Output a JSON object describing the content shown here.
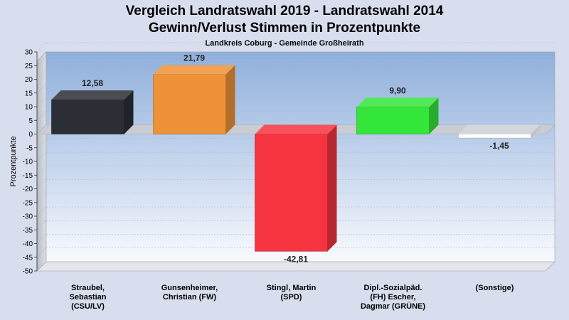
{
  "header": {
    "title_line1": "Vergleich Landratswahl 2019 - Landratswahl 2014",
    "title_line2": "Gewinn/Verlust Stimmen in Prozentpunkte",
    "subtitle": "Landkreis Coburg - Gemeinde Großheirath"
  },
  "chart_data": {
    "type": "bar",
    "title": "Vergleich Landratswahl 2019 - Landratswahl 2014 / Gewinn/Verlust Stimmen in Prozentpunkte",
    "subtitle": "Landkreis Coburg - Gemeinde Großheirath",
    "ylabel": "Prozentpunkte",
    "xlabel": "",
    "ylim": [
      -50,
      30
    ],
    "yticks": [
      30,
      25,
      20,
      15,
      10,
      5,
      0,
      -5,
      -10,
      -15,
      -20,
      -25,
      -30,
      -35,
      -40,
      -45,
      -50
    ],
    "grid": true,
    "legend": "none",
    "categories": [
      [
        "Straubel,",
        "Sebastian",
        "(CSU/LV)"
      ],
      [
        "Gunsenheimer,",
        "Christian (FW)"
      ],
      [
        "Stingl, Martin",
        "(SPD)"
      ],
      [
        "Dipl.-Sozialpäd.",
        "(FH) Escher,",
        "Dagmar (GRÜNE)"
      ],
      [
        "(Sonstige)"
      ]
    ],
    "values": [
      12.58,
      21.79,
      -42.81,
      9.9,
      -1.45
    ],
    "value_labels": [
      "12,58",
      "21,79",
      "-42,81",
      "9,90",
      "-1,45"
    ],
    "colors": [
      "#2b2e35",
      "#ee9237",
      "#f5343f",
      "#34e53a",
      "#ffffff"
    ]
  }
}
